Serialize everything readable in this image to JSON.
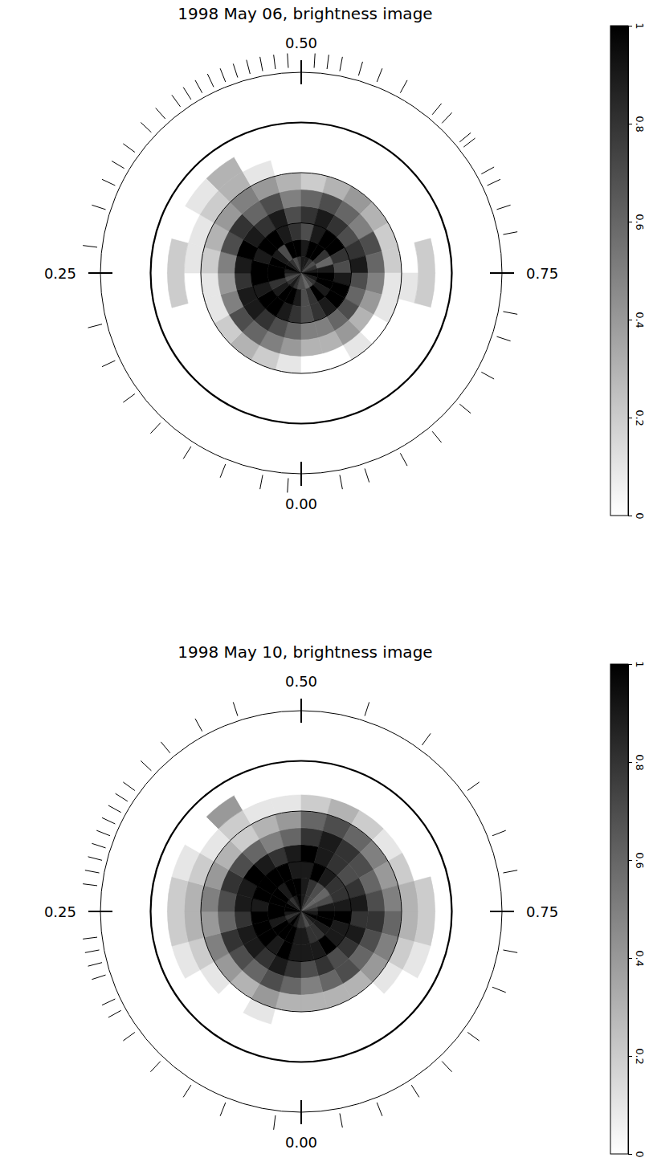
{
  "chart_data": [
    {
      "type": "polar_heatmap",
      "title": "1998 May 06, brightness image",
      "phase_ticks": [
        {
          "value": 0,
          "label": "0.00"
        },
        0.25,
        {
          "value": 0.5,
          "label": "0.50"
        },
        0.75
      ],
      "observed_phases": [
        0.01,
        0.03,
        0.06,
        0.09,
        0.12,
        0.15,
        0.18,
        0.21,
        0.27,
        0.3,
        0.32,
        0.335,
        0.35,
        0.37,
        0.385,
        0.4,
        0.41,
        0.42,
        0.43,
        0.44,
        0.45,
        0.46,
        0.47,
        0.48,
        0.49,
        0.51,
        0.52,
        0.53,
        0.545,
        0.56,
        0.58,
        0.61,
        0.62,
        0.64,
        0.645,
        0.67,
        0.68,
        0.7,
        0.72,
        0.78,
        0.8,
        0.83,
        0.86,
        0.89,
        0.92,
        0.95,
        0.97
      ],
      "latitude_circles": [
        60,
        30,
        0,
        -30
      ],
      "lat_lim": [
        90,
        -30
      ],
      "lat_edges": [
        90,
        80,
        70,
        60,
        50,
        40,
        30,
        20,
        10
      ],
      "cells": [
        [
          0.7,
          0.8,
          0.9,
          0.8,
          0.7,
          0.8,
          0.9,
          1,
          0.9,
          0.8,
          0.7,
          0.8,
          0.9,
          0.9,
          0.8,
          0.7,
          0.8,
          0.9,
          1,
          0.9,
          0.8,
          0.7,
          0.6,
          0.7
        ],
        [
          0.9,
          1,
          1,
          0.9,
          0.8,
          1,
          1,
          1,
          0.9,
          0.7,
          1,
          1,
          0.9,
          1,
          1,
          0.8,
          0.6,
          0.9,
          1,
          1,
          0.9,
          1,
          0.8,
          0.7
        ],
        [
          0.8,
          0.9,
          1,
          1,
          0.9,
          1,
          1,
          0.9,
          1,
          1,
          0.9,
          0.8,
          0.7,
          0.9,
          1,
          1,
          0.8,
          0.7,
          0.9,
          1,
          1,
          0.9,
          0.8,
          0.7
        ],
        [
          0.6,
          0.7,
          0.8,
          0.9,
          0.9,
          0.8,
          0.9,
          1,
          0.9,
          0.8,
          0.9,
          0.7,
          0.8,
          0.9,
          0.8,
          0.7,
          0.8,
          0.9,
          0.7,
          0.6,
          0.7,
          0.6,
          0.5,
          0.5
        ],
        [
          0.4,
          0.5,
          0.6,
          0.7,
          0.5,
          0.4,
          0.5,
          0.7,
          0.8,
          0.6,
          0.7,
          0.5,
          0.6,
          0.7,
          0.6,
          0.5,
          0.7,
          0.6,
          0.5,
          0.4,
          0.3,
          0.4,
          0.3,
          0.3
        ],
        [
          0.1,
          0.2,
          0.3,
          0.2,
          0.1,
          0.1,
          0.2,
          0.3,
          0.4,
          0.5,
          0.4,
          0.3,
          0.2,
          0.3,
          0.4,
          0.3,
          0.2,
          0.2,
          0.1,
          0.1,
          0,
          0.1,
          0,
          0
        ],
        [
          0,
          0,
          0,
          0,
          0,
          0,
          0.1,
          0.1,
          0.2,
          0.3,
          0.1,
          0,
          0,
          0,
          0,
          0,
          0,
          0,
          0.1,
          0,
          0,
          0,
          0,
          0
        ],
        [
          0,
          0,
          0,
          0,
          0,
          0.2,
          0.2,
          0,
          0.1,
          0.3,
          0,
          0,
          0,
          0,
          0,
          0,
          0,
          0.2,
          0.2,
          0,
          0,
          0,
          0,
          0
        ]
      ],
      "color_range": [
        0,
        1
      ],
      "color_ticks": [
        0,
        0.2,
        0.4,
        0.6,
        0.8,
        1
      ]
    },
    {
      "type": "polar_heatmap",
      "title": "1998 May 10, brightness image",
      "phase_ticks": [
        {
          "value": 0,
          "label": "0.00"
        },
        0.25,
        {
          "value": 0.5,
          "label": "0.50"
        },
        0.75
      ],
      "observed_phases": [
        0.02,
        0.06,
        0.09,
        0.12,
        0.15,
        0.17,
        0.18,
        0.2,
        0.21,
        0.22,
        0.23,
        0.27,
        0.28,
        0.29,
        0.3,
        0.31,
        0.32,
        0.33,
        0.34,
        0.35,
        0.37,
        0.39,
        0.42,
        0.45,
        0.55,
        0.6,
        0.65,
        0.69,
        0.72,
        0.78,
        0.81,
        0.85,
        0.88,
        0.91,
        0.94,
        0.97
      ],
      "latitude_circles": [
        60,
        30,
        0,
        -30
      ],
      "lat_lim": [
        90,
        -30
      ],
      "lat_edges": [
        90,
        80,
        70,
        60,
        50,
        40,
        30,
        20,
        10
      ],
      "cells": [
        [
          0.8,
          0.9,
          1,
          0.9,
          0.8,
          0.9,
          1,
          1,
          0.9,
          0.8,
          0.9,
          1,
          0.9,
          0.8,
          0.7,
          0.6,
          0.7,
          0.8,
          0.9,
          1,
          0.9,
          0.8,
          0.7,
          0.8
        ],
        [
          0.9,
          1,
          1,
          1,
          0.9,
          1,
          1,
          1,
          1,
          0.9,
          1,
          1,
          0.9,
          0.8,
          0.7,
          0.6,
          0.7,
          0.9,
          1,
          1,
          0.9,
          0.8,
          0.8,
          0.9
        ],
        [
          0.9,
          1,
          0.9,
          1,
          1,
          1,
          0.9,
          1,
          1,
          1,
          1,
          0.9,
          0.9,
          1,
          0.9,
          0.8,
          0.8,
          0.9,
          1,
          0.9,
          0.9,
          1,
          0.9,
          0.9
        ],
        [
          0.8,
          0.9,
          0.8,
          0.9,
          0.9,
          0.8,
          0.9,
          0.9,
          1,
          0.9,
          0.8,
          0.9,
          1,
          0.9,
          0.8,
          0.7,
          0.8,
          0.9,
          0.8,
          0.9,
          0.8,
          0.7,
          0.8,
          0.7
        ],
        [
          0.6,
          0.7,
          0.6,
          0.7,
          0.8,
          0.6,
          0.7,
          0.8,
          0.7,
          0.6,
          0.5,
          0.6,
          0.8,
          0.9,
          0.8,
          0.7,
          0.6,
          0.7,
          0.8,
          0.7,
          0.6,
          0.7,
          0.6,
          0.5
        ],
        [
          0.3,
          0.4,
          0.3,
          0.4,
          0.5,
          0.4,
          0.5,
          0.4,
          0.3,
          0.2,
          0.3,
          0.4,
          0.6,
          0.7,
          0.6,
          0.5,
          0.4,
          0.5,
          0.6,
          0.5,
          0.4,
          0.3,
          0.3,
          0.3
        ],
        [
          0,
          0.1,
          0,
          0.1,
          0.2,
          0.3,
          0.3,
          0.2,
          0.1,
          0.2,
          0.1,
          0.1,
          0.2,
          0.3,
          0.2,
          0.1,
          0.2,
          0.3,
          0.3,
          0.2,
          0.1,
          0,
          0,
          0
        ],
        [
          0,
          0,
          0,
          0,
          0.1,
          0.2,
          0.2,
          0.1,
          0,
          0.4,
          0,
          0,
          0,
          0,
          0,
          0,
          0,
          0.2,
          0.2,
          0.1,
          0,
          0,
          0,
          0
        ]
      ],
      "color_range": [
        0,
        1
      ],
      "color_ticks": [
        0,
        0.2,
        0.4,
        0.6,
        0.8,
        1
      ]
    }
  ]
}
